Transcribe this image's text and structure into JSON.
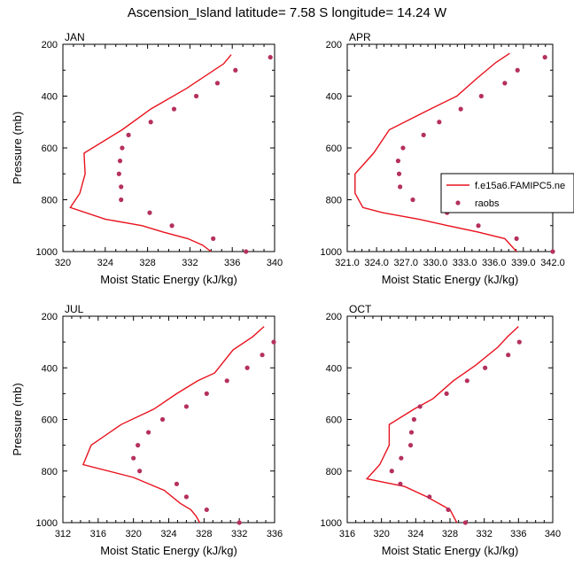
{
  "title": "Ascension_Island  latitude= 7.58 S longitude= 14.24 W",
  "colors": {
    "model": "#e8121e",
    "obs": "#b5305e",
    "frame": "#000000"
  },
  "chart_data": [
    {
      "type": "line",
      "month": "JAN",
      "xlabel": "Moist Static Energy (kJ/kg)",
      "ylabel": "Pressure (mb)",
      "xlim": [
        320,
        340
      ],
      "ylim": [
        1000,
        200
      ],
      "xticks": [
        320,
        324,
        328,
        332,
        336,
        340
      ],
      "xtick_labels": [
        "320",
        "324",
        "328",
        "332",
        "336",
        "340"
      ],
      "yticks": [
        200,
        400,
        600,
        800,
        1000
      ],
      "series": [
        {
          "style": "line",
          "points": [
            [
              334.0,
              1000
            ],
            [
              333.2,
              975
            ],
            [
              331.8,
              950
            ],
            [
              329.5,
              925
            ],
            [
              327.5,
              900
            ],
            [
              324.0,
              875
            ],
            [
              320.7,
              830
            ],
            [
              321.6,
              775
            ],
            [
              322.1,
              700
            ],
            [
              322.0,
              620
            ],
            [
              325.6,
              530
            ],
            [
              328.3,
              450
            ],
            [
              331.7,
              370
            ],
            [
              335.2,
              275
            ],
            [
              335.9,
              240
            ]
          ]
        },
        {
          "style": "markers",
          "points": [
            [
              337.3,
              1000
            ],
            [
              334.2,
              950
            ],
            [
              330.3,
              900
            ],
            [
              328.2,
              850
            ],
            [
              325.5,
              800
            ],
            [
              325.5,
              750
            ],
            [
              325.3,
              700
            ],
            [
              325.4,
              650
            ],
            [
              325.6,
              600
            ],
            [
              326.2,
              550
            ],
            [
              328.3,
              500
            ],
            [
              330.5,
              450
            ],
            [
              332.6,
              400
            ],
            [
              334.6,
              350
            ],
            [
              336.3,
              300
            ],
            [
              339.6,
              250
            ]
          ]
        }
      ]
    },
    {
      "type": "line",
      "month": "APR",
      "xlabel": "Moist Static Energy (kJ/kg)",
      "ylabel": "",
      "xlim": [
        321,
        342
      ],
      "ylim": [
        1000,
        200
      ],
      "xticks": [
        321,
        324,
        327,
        330,
        333,
        336,
        339,
        342
      ],
      "xtick_labels": [
        "321.0",
        "324.0",
        "327.0",
        "330.0",
        "333.0",
        "336.0",
        "339.0",
        "342.0"
      ],
      "yticks": [
        200,
        400,
        600,
        800,
        1000
      ],
      "legend": {
        "position": "right",
        "labels": [
          "f.e15a6.FAMIPC5.ne",
          "raobs"
        ]
      },
      "series": [
        {
          "name": "f.e15a6.FAMIPC5.ne",
          "style": "line",
          "points": [
            [
              338.3,
              1000
            ],
            [
              337.1,
              950
            ],
            [
              334.4,
              925
            ],
            [
              331.3,
              900
            ],
            [
              328.3,
              875
            ],
            [
              324.6,
              850
            ],
            [
              322.6,
              830
            ],
            [
              321.8,
              775
            ],
            [
              321.8,
              700
            ],
            [
              323.7,
              620
            ],
            [
              325.3,
              530
            ],
            [
              329.5,
              450
            ],
            [
              332.2,
              400
            ],
            [
              334.3,
              330
            ],
            [
              336.2,
              270
            ],
            [
              337.6,
              235
            ]
          ]
        },
        {
          "name": "raobs",
          "style": "markers",
          "points": [
            [
              342.0,
              1000
            ],
            [
              338.3,
              950
            ],
            [
              334.4,
              900
            ],
            [
              331.2,
              850
            ],
            [
              327.7,
              800
            ],
            [
              326.4,
              750
            ],
            [
              326.3,
              700
            ],
            [
              326.2,
              650
            ],
            [
              326.7,
              600
            ],
            [
              328.8,
              550
            ],
            [
              330.4,
              500
            ],
            [
              332.6,
              450
            ],
            [
              334.7,
              400
            ],
            [
              337.1,
              350
            ],
            [
              338.4,
              300
            ],
            [
              341.2,
              250
            ]
          ]
        }
      ]
    },
    {
      "type": "line",
      "month": "JUL",
      "xlabel": "Moist Static Energy (kJ/kg)",
      "ylabel": "Pressure (mb)",
      "xlim": [
        312,
        336
      ],
      "ylim": [
        1000,
        200
      ],
      "xticks": [
        312,
        316,
        320,
        324,
        328,
        332,
        336
      ],
      "xtick_labels": [
        "312",
        "316",
        "320",
        "324",
        "328",
        "332",
        "336"
      ],
      "yticks": [
        200,
        400,
        600,
        800,
        1000
      ],
      "series": [
        {
          "style": "line",
          "points": [
            [
              327.5,
              1000
            ],
            [
              327.1,
              975
            ],
            [
              326.5,
              950
            ],
            [
              325.3,
              925
            ],
            [
              323.5,
              875
            ],
            [
              320.0,
              825
            ],
            [
              314.3,
              775
            ],
            [
              315.2,
              700
            ],
            [
              318.6,
              620
            ],
            [
              322.3,
              560
            ],
            [
              324.9,
              500
            ],
            [
              327.3,
              450
            ],
            [
              329.2,
              420
            ],
            [
              331.3,
              330
            ],
            [
              333.5,
              280
            ],
            [
              334.8,
              240
            ]
          ]
        },
        {
          "style": "markers",
          "points": [
            [
              332.0,
              1000
            ],
            [
              328.3,
              950
            ],
            [
              326.0,
              900
            ],
            [
              324.9,
              850
            ],
            [
              320.7,
              800
            ],
            [
              320.0,
              750
            ],
            [
              320.5,
              700
            ],
            [
              321.7,
              650
            ],
            [
              323.3,
              600
            ],
            [
              326.0,
              550
            ],
            [
              328.3,
              500
            ],
            [
              330.6,
              450
            ],
            [
              332.9,
              400
            ],
            [
              334.6,
              350
            ],
            [
              335.9,
              300
            ]
          ]
        }
      ]
    },
    {
      "type": "line",
      "month": "OCT",
      "xlabel": "Moist Static Energy (kJ/kg)",
      "ylabel": "",
      "xlim": [
        316,
        340
      ],
      "ylim": [
        1000,
        200
      ],
      "xticks": [
        316,
        320,
        324,
        328,
        332,
        336,
        340
      ],
      "xtick_labels": [
        "316",
        "320",
        "324",
        "328",
        "332",
        "336",
        "340"
      ],
      "yticks": [
        200,
        400,
        600,
        800,
        1000
      ],
      "series": [
        {
          "style": "line",
          "points": [
            [
              328.8,
              1000
            ],
            [
              328.0,
              950
            ],
            [
              325.3,
              900
            ],
            [
              322.7,
              860
            ],
            [
              318.3,
              830
            ],
            [
              319.8,
              775
            ],
            [
              320.9,
              700
            ],
            [
              320.9,
              620
            ],
            [
              323.8,
              560
            ],
            [
              326.0,
              520
            ],
            [
              328.4,
              450
            ],
            [
              331.0,
              390
            ],
            [
              333.6,
              320
            ],
            [
              334.7,
              280
            ],
            [
              336.0,
              240
            ]
          ]
        },
        {
          "style": "markers",
          "points": [
            [
              329.8,
              1000
            ],
            [
              327.8,
              950
            ],
            [
              325.6,
              900
            ],
            [
              322.2,
              850
            ],
            [
              321.2,
              800
            ],
            [
              322.3,
              750
            ],
            [
              323.4,
              700
            ],
            [
              323.5,
              650
            ],
            [
              323.8,
              600
            ],
            [
              324.5,
              550
            ],
            [
              327.6,
              500
            ],
            [
              330.0,
              450
            ],
            [
              332.1,
              400
            ],
            [
              334.8,
              350
            ],
            [
              336.1,
              300
            ]
          ]
        }
      ]
    }
  ]
}
